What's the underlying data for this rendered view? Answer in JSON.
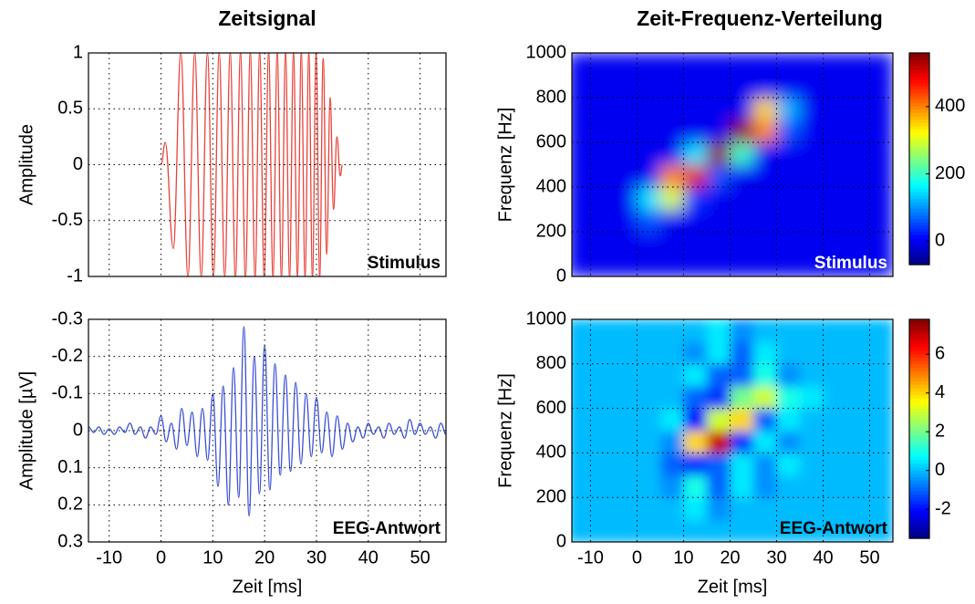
{
  "chart_data": [
    {
      "type": "line",
      "title": "Zeitsignal",
      "ylabel": "Amplitude",
      "annotation": "Stimulus",
      "color": "#e8423a",
      "x": [
        0,
        0.82,
        2.37,
        3.83,
        5.2,
        6.51,
        7.76,
        8.96,
        10.11,
        11.23,
        12.3,
        13.35,
        14.36,
        15.34,
        16.3,
        17.23,
        18.15,
        19.04,
        19.91,
        20.77,
        21.61,
        22.43,
        23.24,
        24.03,
        24.81,
        25.57,
        26.33,
        27.07,
        27.8,
        28.52,
        29.23,
        29.93,
        30.62,
        31.3,
        31.98,
        32.64,
        33.3,
        33.95,
        34.59,
        35
      ],
      "values": [
        0,
        0.2,
        -0.75,
        1,
        -1,
        1,
        -1,
        1,
        -1,
        1,
        -1,
        1,
        -1,
        1,
        -1,
        1,
        -1,
        1,
        -1,
        1,
        -1,
        1,
        -1,
        1,
        -1,
        1,
        -1,
        1,
        -1,
        1,
        -1,
        1,
        -1,
        0.95,
        -0.8,
        0.6,
        -0.4,
        0.25,
        -0.1,
        0
      ],
      "xlim": [
        -14,
        55
      ],
      "xticks": [
        -10,
        0,
        10,
        20,
        30,
        40,
        50
      ],
      "xtick_labels": false,
      "ylim": [
        -1,
        1
      ],
      "yticks": [
        -1,
        -0.5,
        0,
        0.5,
        1
      ],
      "grid": true
    },
    {
      "type": "line",
      "xlabel": "Zeit [ms]",
      "ylabel": "Amplitude [µV]",
      "annotation": "EEG-Antwort",
      "color": "#3b4fd6",
      "x": [
        -15,
        -14,
        -13,
        -12,
        -11,
        -10,
        -9,
        -8,
        -7,
        -6,
        -5,
        -4,
        -3,
        -2,
        -1,
        0,
        1,
        2,
        3,
        4,
        5,
        6,
        7,
        8,
        9,
        10,
        11,
        12,
        13,
        14,
        15,
        16,
        17,
        18,
        19,
        20,
        21,
        22,
        23,
        24,
        25,
        26,
        27,
        28,
        29,
        30,
        31,
        32,
        33,
        34,
        35,
        36,
        37,
        38,
        39,
        40,
        41,
        42,
        43,
        44,
        45,
        46,
        47,
        48,
        49,
        50,
        51,
        52,
        53,
        54,
        55
      ],
      "values": [
        0.01,
        -0.01,
        0.005,
        -0.01,
        0.01,
        -0.005,
        0.01,
        -0.01,
        0.005,
        -0.02,
        0.01,
        -0.01,
        0.02,
        -0.01,
        0.01,
        -0.04,
        0.03,
        -0.02,
        0.05,
        -0.06,
        0.04,
        -0.05,
        0.07,
        -0.06,
        0.08,
        -0.1,
        0.15,
        -0.12,
        0.2,
        -0.17,
        0.18,
        -0.28,
        0.23,
        -0.2,
        0.17,
        -0.23,
        0.16,
        -0.18,
        0.12,
        -0.15,
        0.11,
        -0.13,
        0.09,
        -0.1,
        0.07,
        -0.09,
        0.06,
        -0.05,
        0.07,
        -0.04,
        0.05,
        -0.02,
        0.03,
        -0.01,
        0.02,
        -0.02,
        0.01,
        -0.01,
        0.02,
        -0.02,
        0.01,
        -0.01,
        0.02,
        -0.03,
        0.01,
        -0.02,
        0.01,
        -0.01,
        0.02,
        -0.02,
        0.01
      ],
      "xlim": [
        -14,
        55
      ],
      "xticks": [
        -10,
        0,
        10,
        20,
        30,
        40,
        50
      ],
      "ylim": [
        0.3,
        -0.3
      ],
      "yticks": [
        0.3,
        0.2,
        0.1,
        0,
        -0.1,
        -0.2,
        -0.3
      ],
      "grid": true
    },
    {
      "type": "heatmap",
      "title": "Zeit-Frequenz-Verteilung",
      "ylabel": "Frequenz [Hz]",
      "annotation": "Stimulus",
      "colormap": "jet",
      "x_edges": [
        -15,
        -10,
        -5,
        0,
        5,
        10,
        15,
        20,
        25,
        30,
        35,
        40,
        45,
        50,
        55
      ],
      "y_edges": [
        0,
        100,
        200,
        300,
        400,
        500,
        600,
        700,
        800,
        900,
        1000
      ],
      "z": [
        [
          0,
          0,
          0,
          0,
          0,
          0,
          0,
          0,
          0,
          0,
          0,
          0,
          0,
          0
        ],
        [
          0,
          0,
          0,
          0,
          0,
          0,
          0,
          0,
          0,
          0,
          0,
          0,
          0,
          0
        ],
        [
          0,
          0,
          0,
          60,
          0,
          0,
          0,
          0,
          0,
          0,
          0,
          0,
          0,
          0
        ],
        [
          0,
          0,
          0,
          150,
          300,
          40,
          0,
          0,
          0,
          0,
          0,
          0,
          0,
          0
        ],
        [
          0,
          0,
          0,
          0,
          400,
          500,
          60,
          0,
          0,
          0,
          0,
          0,
          0,
          0
        ],
        [
          0,
          0,
          0,
          0,
          0,
          150,
          550,
          200,
          0,
          0,
          0,
          0,
          0,
          0
        ],
        [
          0,
          0,
          0,
          0,
          0,
          0,
          0,
          550,
          400,
          60,
          0,
          0,
          0,
          0
        ],
        [
          0,
          0,
          0,
          0,
          0,
          0,
          0,
          0,
          350,
          120,
          0,
          0,
          0,
          0
        ],
        [
          0,
          0,
          0,
          0,
          0,
          0,
          0,
          0,
          0,
          0,
          0,
          0,
          0,
          0
        ],
        [
          0,
          0,
          0,
          0,
          0,
          0,
          0,
          0,
          0,
          0,
          0,
          0,
          0,
          0
        ]
      ],
      "zlim": [
        -70,
        560
      ],
      "zticks": [
        0,
        200,
        400
      ],
      "xlim": [
        -14,
        55
      ],
      "xticks": [
        -10,
        0,
        10,
        20,
        30,
        40,
        50
      ],
      "xtick_labels": false,
      "ylim": [
        0,
        1000
      ],
      "yticks": [
        0,
        200,
        400,
        600,
        800,
        1000
      ],
      "grid": true
    },
    {
      "type": "heatmap",
      "xlabel": "Zeit [ms]",
      "ylabel": "Frequenz [Hz]",
      "annotation": "EEG-Antwort",
      "colormap": "jet",
      "x_edges": [
        -15,
        -10,
        -5,
        0,
        5,
        10,
        15,
        20,
        25,
        30,
        35,
        40,
        45,
        50,
        55
      ],
      "y_edges": [
        0,
        100,
        200,
        300,
        400,
        500,
        600,
        700,
        800,
        900,
        1000
      ],
      "z": [
        [
          0,
          0,
          0,
          0,
          0,
          0,
          0,
          0,
          0,
          0,
          0,
          0,
          0,
          0
        ],
        [
          0,
          0,
          0,
          0,
          0,
          0.5,
          -0.5,
          0,
          0,
          0,
          0,
          0,
          0,
          0
        ],
        [
          0,
          0,
          0,
          0,
          -0.5,
          1,
          -1,
          0.5,
          -0.5,
          0,
          0,
          0,
          0,
          0
        ],
        [
          0,
          0,
          0,
          0,
          -1,
          -1.5,
          -1,
          0.5,
          -0.5,
          0.5,
          0,
          0,
          0,
          0
        ],
        [
          0,
          0,
          0,
          0,
          -0.5,
          4,
          7,
          -1.5,
          0.5,
          -0.5,
          0,
          0,
          0,
          0
        ],
        [
          0,
          0,
          0,
          0,
          0.5,
          -2,
          3,
          4,
          -1,
          0.5,
          0,
          0,
          0,
          0
        ],
        [
          0,
          0,
          0,
          0,
          0,
          -1,
          -1.5,
          2,
          3,
          1,
          0.5,
          0,
          0,
          0
        ],
        [
          0,
          0,
          0,
          0,
          0,
          0.5,
          -1,
          -1,
          1,
          -0.5,
          0,
          0,
          0,
          0
        ],
        [
          0,
          0,
          0,
          0,
          0,
          -0.5,
          0.5,
          -1,
          0.5,
          0,
          0,
          0,
          0,
          0
        ],
        [
          0,
          0,
          0,
          0,
          0,
          0,
          0.5,
          -0.5,
          0,
          0,
          0,
          0,
          0,
          0
        ]
      ],
      "zlim": [
        -3.5,
        7.8
      ],
      "zticks": [
        -2,
        0,
        2,
        4,
        6
      ],
      "xlim": [
        -14,
        55
      ],
      "xticks": [
        -10,
        0,
        10,
        20,
        30,
        40,
        50
      ],
      "ylim": [
        0,
        1000
      ],
      "yticks": [
        0,
        200,
        400,
        600,
        800,
        1000
      ],
      "grid": true
    }
  ]
}
